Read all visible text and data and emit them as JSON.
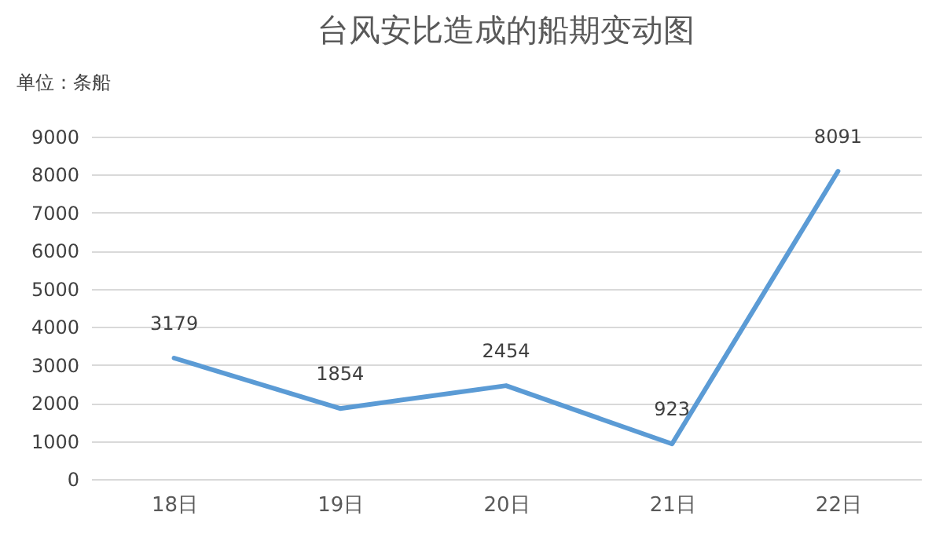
{
  "chart_data": {
    "type": "line",
    "title": "台风安比造成的船期变动图",
    "ylabel": "单位：条船",
    "categories": [
      "18日",
      "19日",
      "20日",
      "21日",
      "22日"
    ],
    "series": [
      {
        "color": "#5b9bd5",
        "values": [
          3179,
          1854,
          2454,
          923,
          8091
        ]
      }
    ],
    "ylim": [
      0,
      9000
    ],
    "yticks": [
      0,
      1000,
      2000,
      3000,
      4000,
      5000,
      6000,
      7000,
      8000,
      9000
    ],
    "grid": "y",
    "data_labels": true,
    "marker": "none",
    "line_style": "solid"
  }
}
